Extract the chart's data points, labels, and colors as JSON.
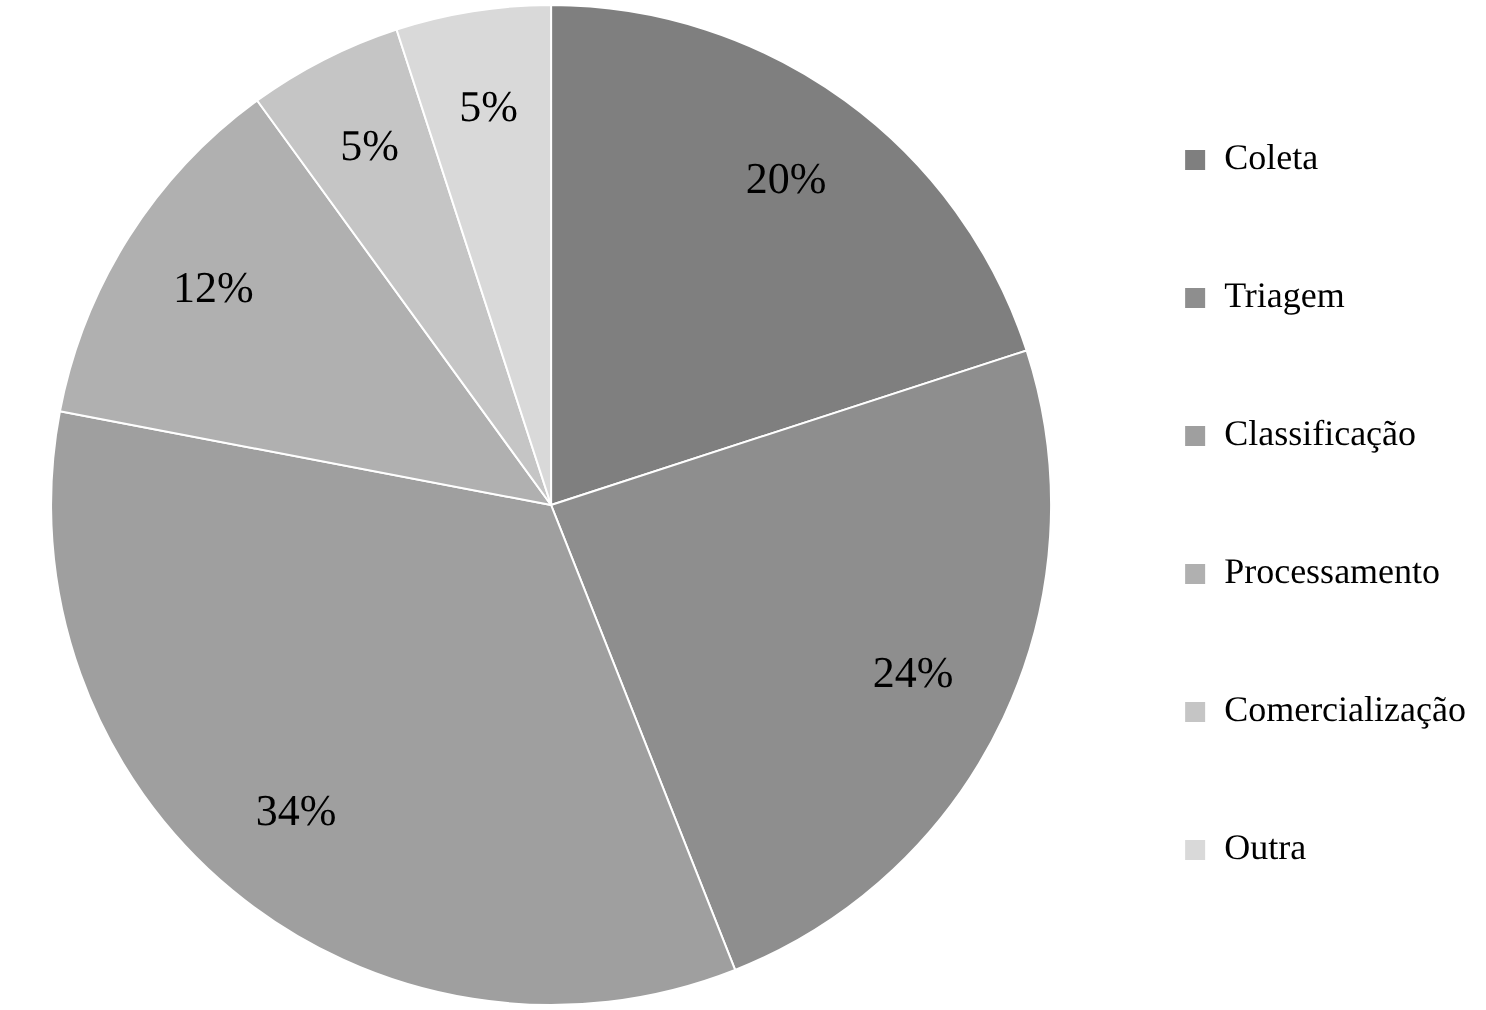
{
  "chart_data": {
    "type": "pie",
    "categories": [
      "Coleta",
      "Triagem",
      "Classificação",
      "Processamento",
      "Comercialização",
      "Outra"
    ],
    "values": [
      20,
      24,
      34,
      12,
      5,
      5
    ],
    "colors": [
      "#7f7f7f",
      "#8e8e8e",
      "#9f9f9f",
      "#b0b0b0",
      "#c5c5c5",
      "#d9d9d9"
    ],
    "value_labels": [
      "20%",
      "24%",
      "34%",
      "12%",
      "5%",
      "5%"
    ],
    "legend": "right"
  }
}
